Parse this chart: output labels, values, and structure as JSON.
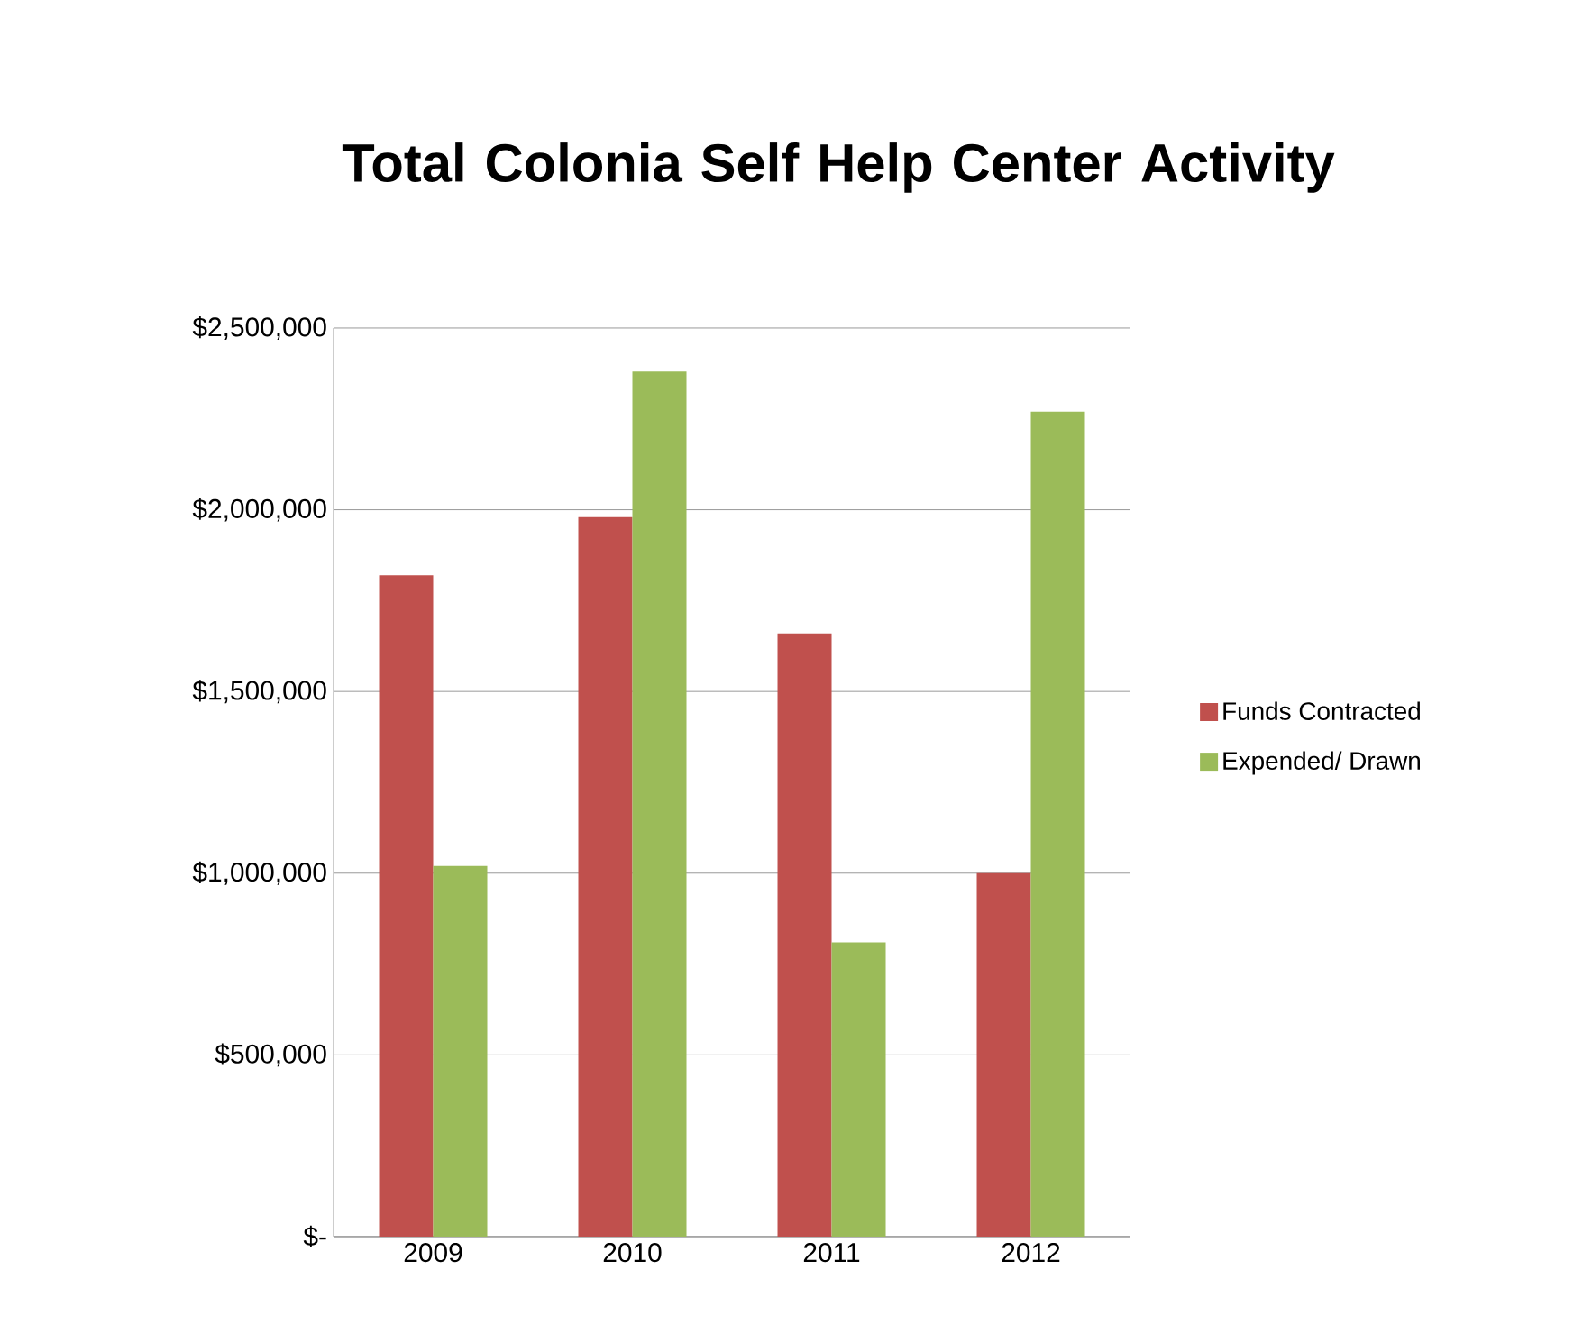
{
  "chart_data": {
    "type": "bar",
    "title": "Total Colonia Self Help Center Activity",
    "categories": [
      "2009",
      "2010",
      "2011",
      "2012"
    ],
    "series": [
      {
        "name": "Funds Contracted",
        "color": "#c0504d",
        "values": [
          1820000,
          1980000,
          1660000,
          1000000
        ]
      },
      {
        "name": "Expended/ Drawn",
        "color": "#9bbb59",
        "values": [
          1020000,
          2380000,
          810000,
          2270000
        ]
      }
    ],
    "ylim": [
      0,
      2500000
    ],
    "yticks": [
      {
        "value": 0,
        "label": "$-"
      },
      {
        "value": 500000,
        "label": "$500,000"
      },
      {
        "value": 1000000,
        "label": "$1,000,000"
      },
      {
        "value": 1500000,
        "label": "$1,500,000"
      },
      {
        "value": 2000000,
        "label": "$2,000,000"
      },
      {
        "value": 2500000,
        "label": "$2,500,000"
      }
    ],
    "grid": "y",
    "legend": "right"
  }
}
